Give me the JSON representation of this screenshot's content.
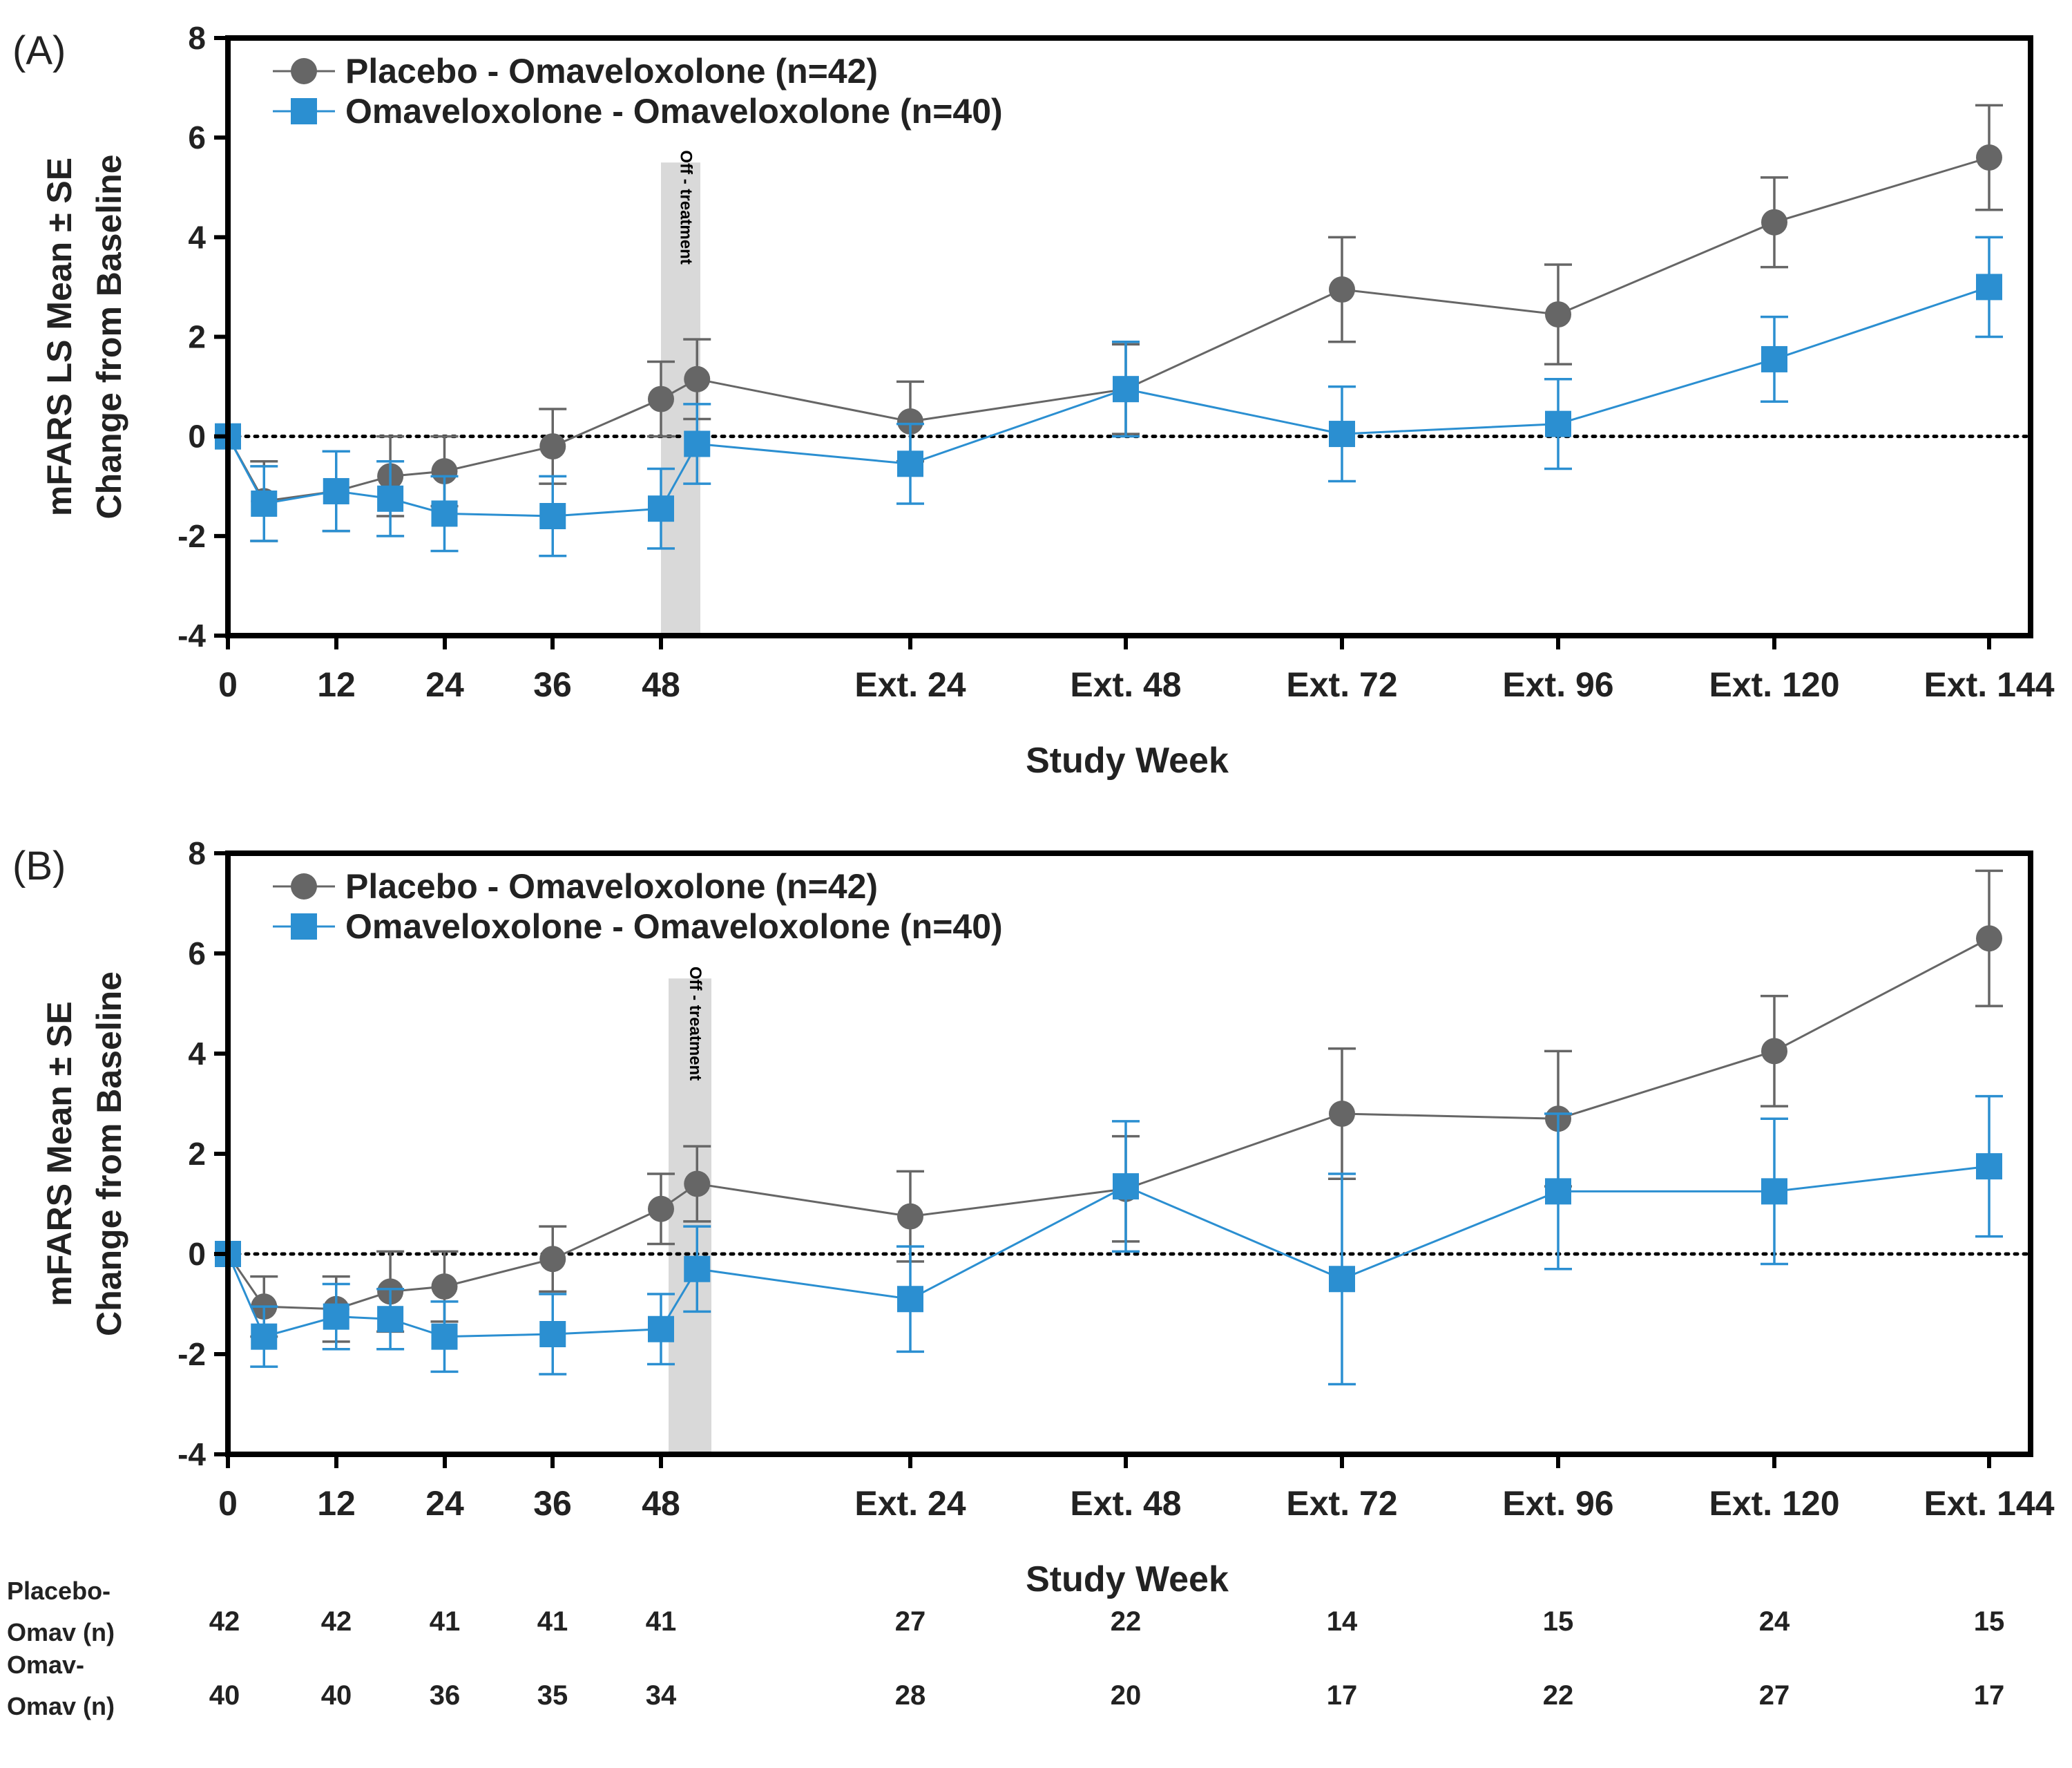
{
  "colors": {
    "placebo": "#666666",
    "omav": "#2b8fd1",
    "axis": "#000000",
    "shade": "#d9d9d9"
  },
  "x_tick_labels": [
    "0",
    "12",
    "24",
    "36",
    "48",
    "Ext. 24",
    "Ext. 48",
    "Ext. 72",
    "Ext. 96",
    "Ext. 120",
    "Ext. 144"
  ],
  "chart_data": [
    {
      "type": "line",
      "panel_label": "(A)",
      "ylabel_line1": "mFARS LS Mean ± SE",
      "ylabel_line2": "Change from Baseline",
      "xlabel": "Study Week",
      "ylim": [
        -4,
        8
      ],
      "yticks": [
        "-4",
        "-2",
        "0",
        "2",
        "4",
        "6",
        "8"
      ],
      "off_treatment_label": "Off - treatment",
      "reference_line": 0,
      "legend_position": "top-left",
      "series": [
        {
          "name": "Placebo - Omaveloxolone (n=42)",
          "marker": "circle",
          "x": [
            0,
            4,
            12,
            18,
            24,
            36,
            48,
            52,
            "Ext. 24",
            "Ext. 48",
            "Ext. 72",
            "Ext. 96",
            "Ext. 120",
            "Ext. 144"
          ],
          "y": [
            0,
            -1.3,
            -1.1,
            -0.8,
            -0.7,
            -0.2,
            0.75,
            1.15,
            0.3,
            0.95,
            2.95,
            2.45,
            4.3,
            5.6
          ],
          "se": [
            0,
            0.8,
            0.8,
            0.8,
            0.7,
            0.75,
            0.75,
            0.8,
            0.8,
            0.9,
            1.05,
            1.0,
            0.9,
            1.05
          ]
        },
        {
          "name": "Omaveloxolone - Omaveloxolone (n=40)",
          "marker": "square",
          "x": [
            0,
            4,
            12,
            18,
            24,
            36,
            48,
            52,
            "Ext. 24",
            "Ext. 48",
            "Ext. 72",
            "Ext. 96",
            "Ext. 120",
            "Ext. 144"
          ],
          "y": [
            0,
            -1.35,
            -1.1,
            -1.25,
            -1.55,
            -1.6,
            -1.45,
            -0.15,
            -0.55,
            0.95,
            0.05,
            0.25,
            1.55,
            3.0
          ],
          "se": [
            0,
            0.75,
            0.8,
            0.75,
            0.75,
            0.8,
            0.8,
            0.8,
            0.8,
            0.95,
            0.95,
            0.9,
            0.85,
            1.0
          ]
        }
      ]
    },
    {
      "type": "line",
      "panel_label": "(B)",
      "ylabel_line1": "mFARS Mean ± SE",
      "ylabel_line2": "Change from Baseline",
      "xlabel": "Study Week",
      "ylim": [
        -4,
        8
      ],
      "yticks": [
        "-4",
        "-2",
        "0",
        "2",
        "4",
        "6",
        "8"
      ],
      "off_treatment_label": "Off - treatment",
      "reference_line": 0,
      "legend_position": "top-left",
      "series": [
        {
          "name": "Placebo - Omaveloxolone (n=42)",
          "marker": "circle",
          "x": [
            0,
            4,
            12,
            18,
            24,
            36,
            48,
            52,
            "Ext. 24",
            "Ext. 48",
            "Ext. 72",
            "Ext. 96",
            "Ext. 120",
            "Ext. 144"
          ],
          "y": [
            0,
            -1.05,
            -1.1,
            -0.75,
            -0.65,
            -0.1,
            0.9,
            1.4,
            0.75,
            1.3,
            2.8,
            2.7,
            4.05,
            6.3
          ],
          "se": [
            0,
            0.6,
            0.65,
            0.8,
            0.7,
            0.65,
            0.7,
            0.75,
            0.9,
            1.05,
            1.3,
            1.35,
            1.1,
            1.35
          ]
        },
        {
          "name": "Omaveloxolone - Omaveloxolone (n=40)",
          "marker": "square",
          "x": [
            0,
            4,
            12,
            18,
            24,
            36,
            48,
            52,
            "Ext. 24",
            "Ext. 48",
            "Ext. 72",
            "Ext. 96",
            "Ext. 120",
            "Ext. 144"
          ],
          "y": [
            0,
            -1.65,
            -1.25,
            -1.3,
            -1.65,
            -1.6,
            -1.5,
            -0.3,
            -0.9,
            1.35,
            -0.5,
            1.25,
            1.25,
            1.75
          ],
          "se": [
            0,
            0.6,
            0.65,
            0.6,
            0.7,
            0.8,
            0.7,
            0.85,
            1.05,
            1.3,
            2.1,
            1.55,
            1.45,
            1.4
          ]
        }
      ]
    }
  ],
  "n_table": {
    "rows": [
      {
        "label_line1": "Placebo-",
        "label_line2": "Omav (n)",
        "values": [
          "42",
          "42",
          "41",
          "41",
          "41",
          "27",
          "22",
          "14",
          "15",
          "24",
          "15"
        ]
      },
      {
        "label_line1": "Omav-",
        "label_line2": "Omav (n)",
        "values": [
          "40",
          "40",
          "36",
          "35",
          "34",
          "28",
          "20",
          "17",
          "22",
          "27",
          "17"
        ]
      }
    ]
  }
}
